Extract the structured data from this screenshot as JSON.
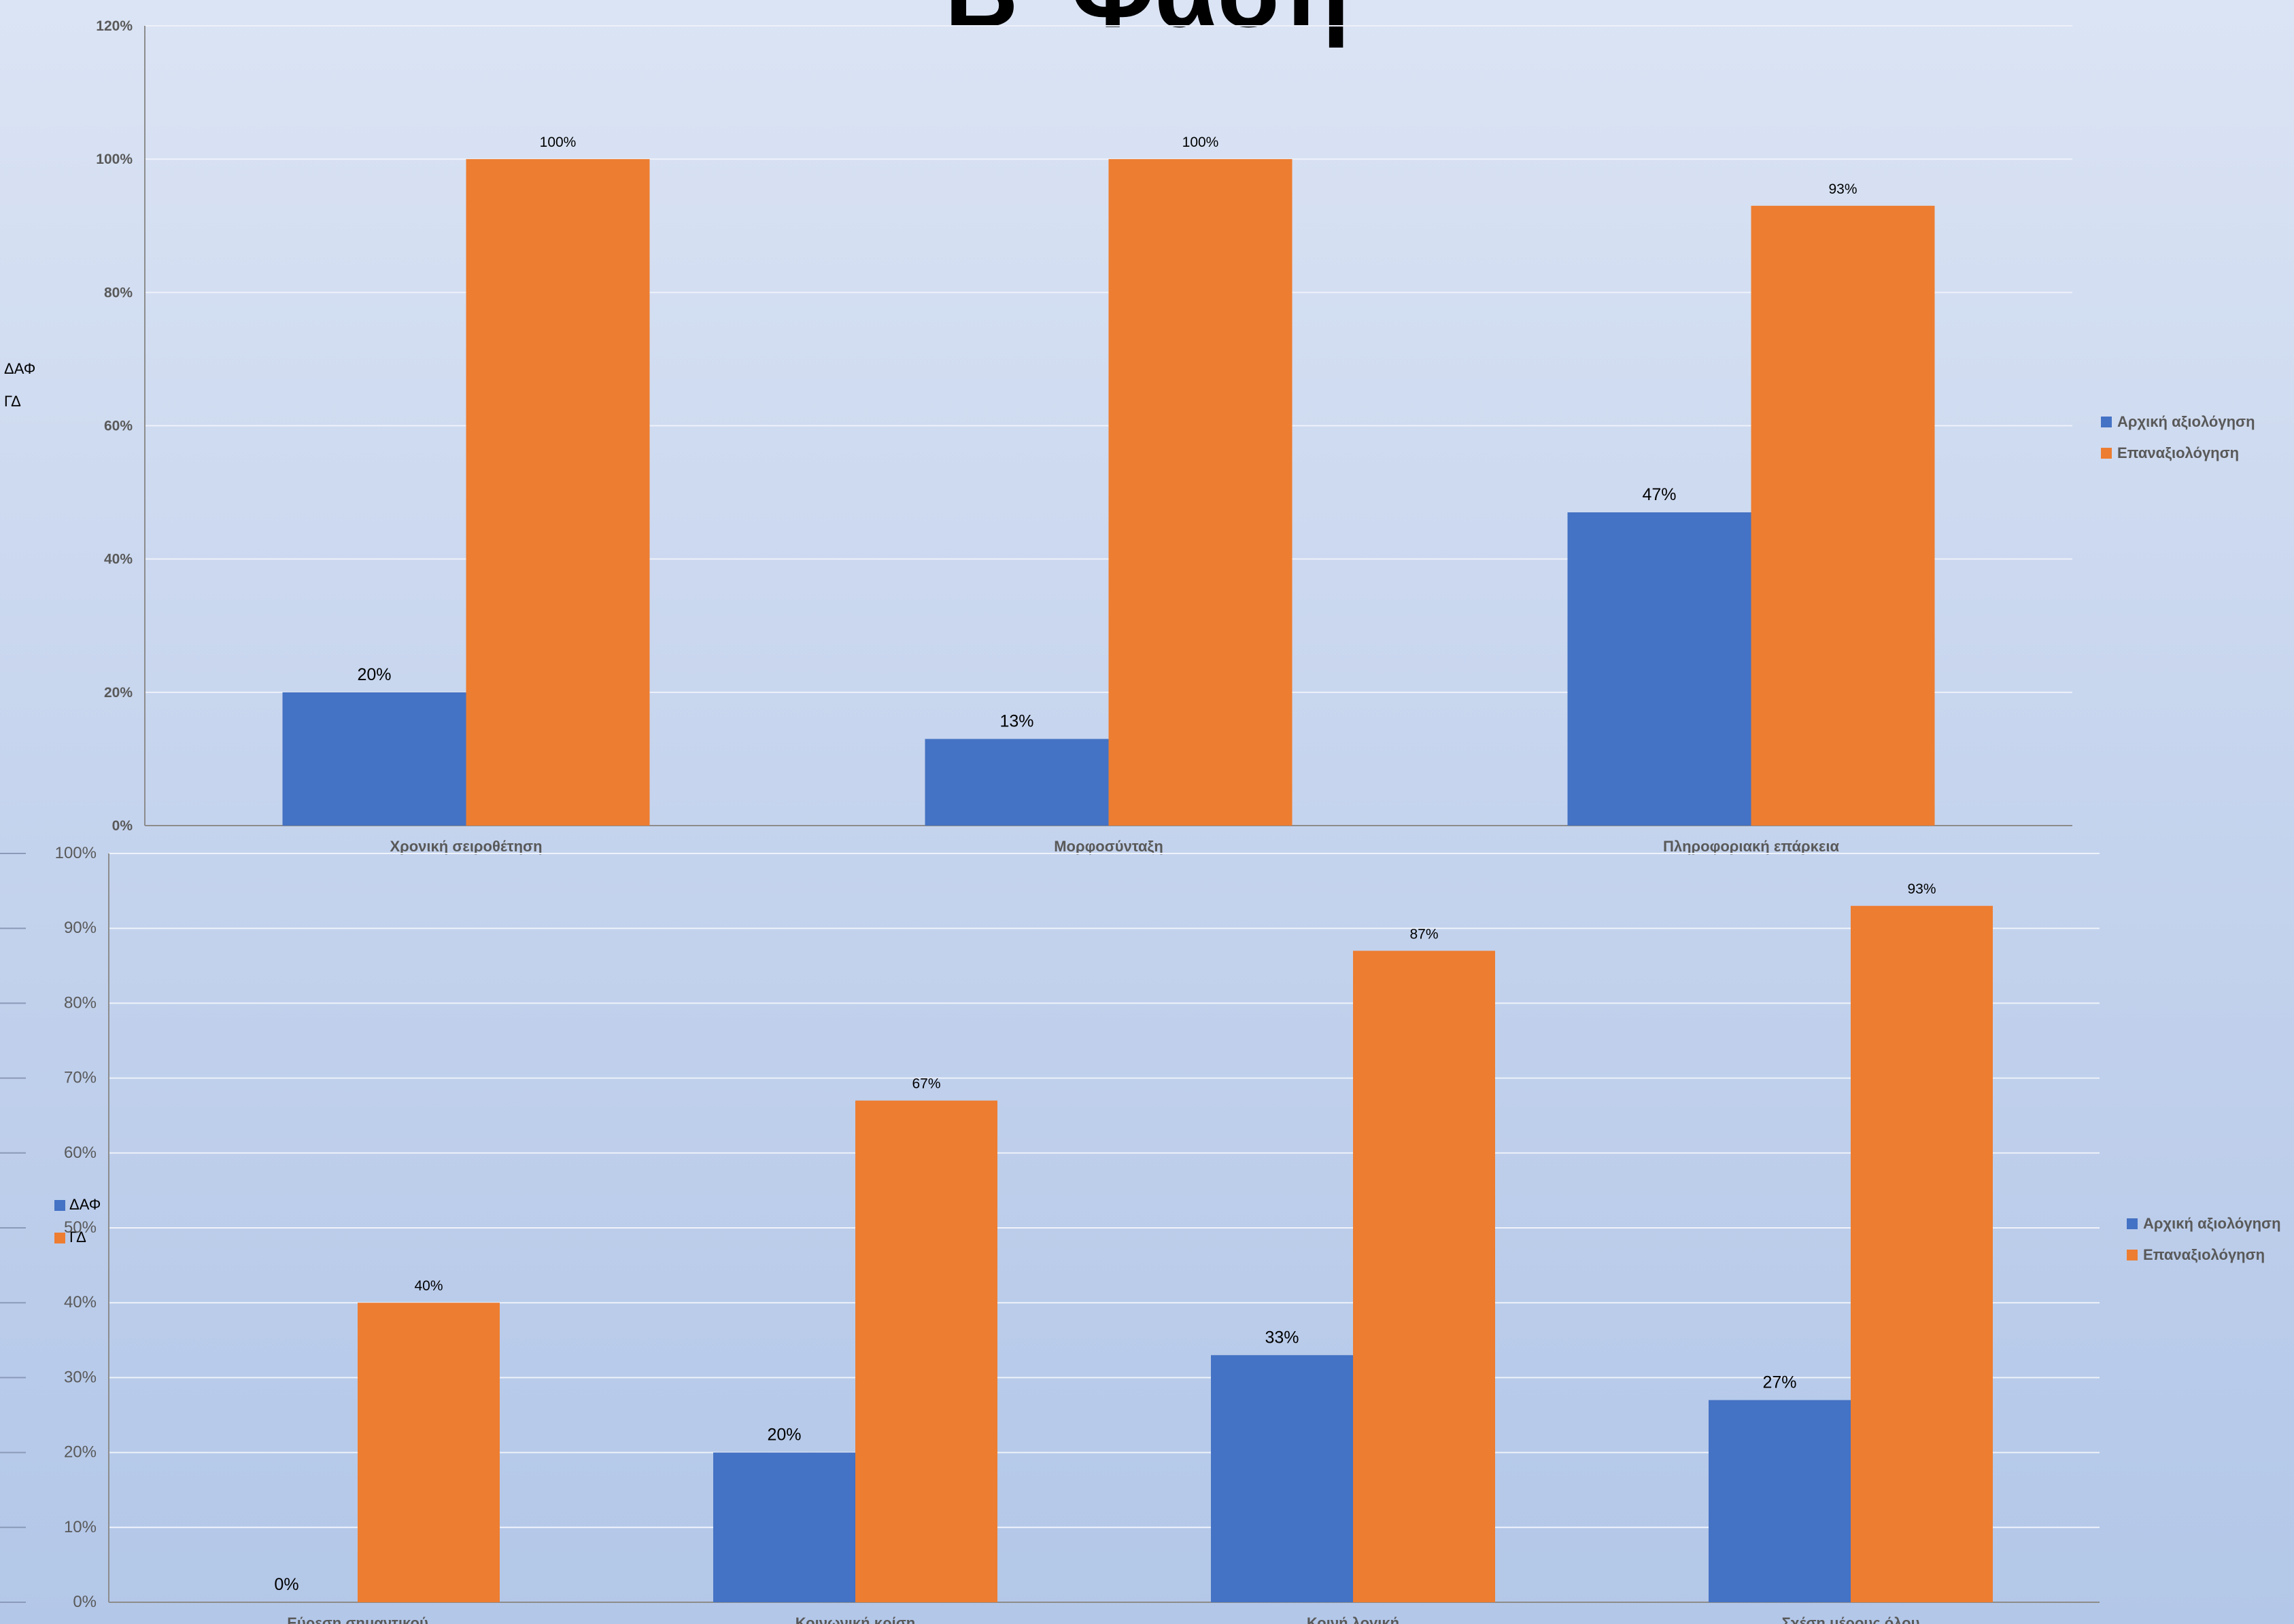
{
  "slide": {
    "title": "Β' Φάση"
  },
  "stray_legend": {
    "top": [
      "ΔΑΦ",
      "ΓΔ"
    ],
    "bottom": [
      "ΔΑΦ",
      "ΓΔ"
    ],
    "colors": [
      "#4472c4",
      "#ed7d31"
    ]
  },
  "chart_data": [
    {
      "type": "bar",
      "categories": [
        "Χρονική σειροθέτηση",
        "Μορφοσύνταξη",
        "Πληροφοριακή επάρκεια"
      ],
      "series": [
        {
          "name": "Αρχική αξιολόγηση",
          "color": "#4472c4",
          "values": [
            20,
            13,
            47
          ],
          "labels": [
            "20%",
            "13%",
            "47%"
          ]
        },
        {
          "name": "Επαναξιολόγηση",
          "color": "#ed7d31",
          "values": [
            100,
            100,
            93
          ],
          "labels": [
            "100%",
            "100%",
            "93%"
          ]
        }
      ],
      "ylim": [
        0,
        120
      ],
      "yticks": [
        "0%",
        "20%",
        "40%",
        "60%",
        "80%",
        "100%",
        "120%"
      ],
      "grid": true,
      "legend": "right"
    },
    {
      "type": "bar",
      "categories": [
        "Εύρεση σημαντικού",
        "Κοινωνική κρίση",
        "Κοινή λογική",
        "Σχέση μέρους όλου"
      ],
      "series": [
        {
          "name": "Αρχική αξιολόγηση",
          "color": "#4472c4",
          "values": [
            0,
            20,
            33,
            27
          ],
          "labels": [
            "0%",
            "20%",
            "33%",
            "27%"
          ]
        },
        {
          "name": "Επαναξιολόγηση",
          "color": "#ed7d31",
          "values": [
            40,
            67,
            87,
            93
          ],
          "labels": [
            "40%",
            "67%",
            "87%",
            "93%"
          ]
        }
      ],
      "ylim": [
        0,
        100
      ],
      "yticks": [
        "0%",
        "10%",
        "20%",
        "30%",
        "40%",
        "50%",
        "60%",
        "70%",
        "80%",
        "90%",
        "100%"
      ],
      "grid": true,
      "legend": "right"
    }
  ]
}
